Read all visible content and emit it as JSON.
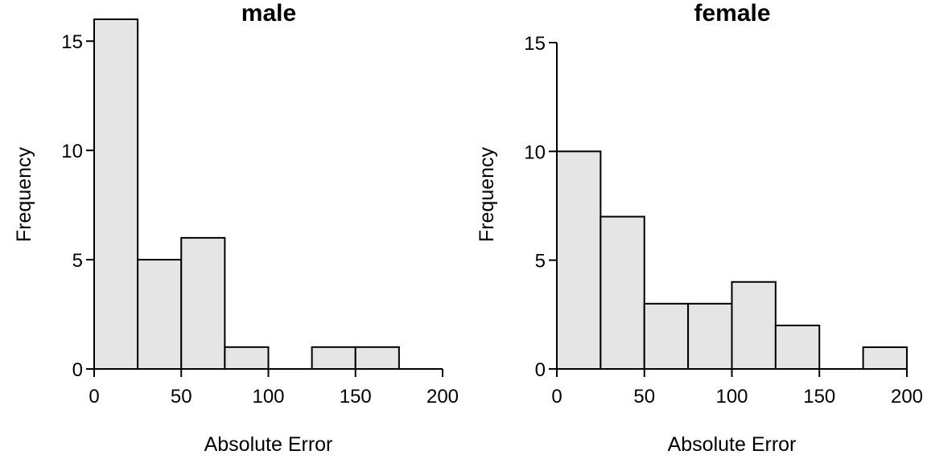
{
  "chart_data": [
    {
      "type": "bar",
      "title": "male",
      "xlabel": "Absolute Error",
      "ylabel": "Frequency",
      "bin_edges": [
        0,
        25,
        50,
        75,
        100,
        125,
        150,
        175,
        200
      ],
      "values": [
        16,
        5,
        6,
        1,
        0,
        1,
        1,
        0
      ],
      "xlim": [
        0,
        200
      ],
      "ylim": [
        0,
        16
      ],
      "xticks": [
        0,
        50,
        100,
        150,
        200
      ],
      "yticks": [
        0,
        5,
        10,
        15
      ],
      "grid": false,
      "bar_color": "#e5e5e5"
    },
    {
      "type": "bar",
      "title": "female",
      "xlabel": "Absolute Error",
      "ylabel": "Frequency",
      "bin_edges": [
        0,
        25,
        50,
        75,
        100,
        125,
        150,
        175,
        200
      ],
      "values": [
        10,
        7,
        3,
        3,
        4,
        2,
        0,
        1
      ],
      "xlim": [
        0,
        200
      ],
      "ylim": [
        0,
        15
      ],
      "xticks": [
        0,
        50,
        100,
        150,
        200
      ],
      "yticks": [
        0,
        5,
        10,
        15
      ],
      "grid": false,
      "bar_color": "#e5e5e5"
    }
  ]
}
